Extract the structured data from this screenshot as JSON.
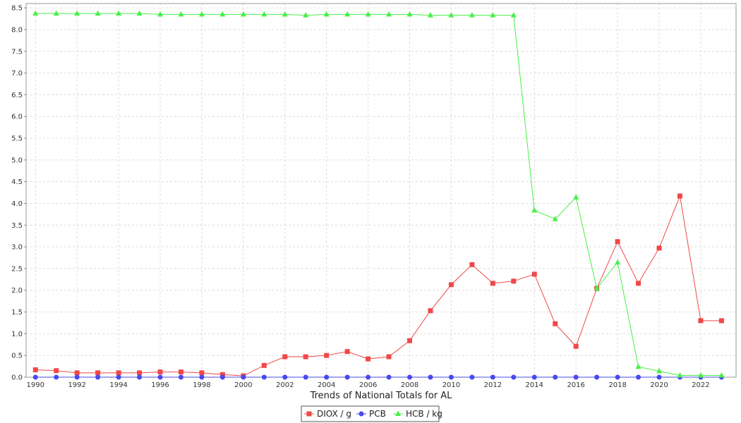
{
  "chart_data": {
    "type": "line",
    "title": "",
    "xlabel": "Trends of National Totals for AL",
    "ylabel": "",
    "x": [
      1990,
      1991,
      1992,
      1993,
      1994,
      1995,
      1996,
      1997,
      1998,
      1999,
      2000,
      2001,
      2002,
      2003,
      2004,
      2005,
      2006,
      2007,
      2008,
      2009,
      2010,
      2011,
      2012,
      2013,
      2014,
      2015,
      2016,
      2017,
      2018,
      2019,
      2020,
      2021,
      2022,
      2023
    ],
    "xlim": [
      1989.55,
      2023.7
    ],
    "ylim": [
      0,
      8.6
    ],
    "x_ticks": [
      1990,
      1992,
      1994,
      1996,
      1998,
      2000,
      2002,
      2004,
      2006,
      2008,
      2010,
      2012,
      2014,
      2016,
      2018,
      2020,
      2022
    ],
    "y_ticks": [
      "0.0",
      "0.5",
      "1.0",
      "1.5",
      "2.0",
      "2.5",
      "3.0",
      "3.5",
      "4.0",
      "4.5",
      "5.0",
      "5.5",
      "6.0",
      "6.5",
      "7.0",
      "7.5",
      "8.0",
      "8.5"
    ],
    "grid": true,
    "legend_position": "bottom-center",
    "series": [
      {
        "name": "DIOX / g",
        "color": "#f04848",
        "marker": "square",
        "values": [
          0.17,
          0.15,
          0.1,
          0.1,
          0.1,
          0.1,
          0.12,
          0.12,
          0.1,
          0.06,
          0.03,
          0.27,
          0.47,
          0.47,
          0.5,
          0.59,
          0.42,
          0.47,
          0.84,
          1.53,
          2.13,
          2.59,
          2.16,
          2.21,
          2.37,
          1.23,
          0.71,
          2.04,
          3.12,
          2.16,
          2.97,
          4.17,
          1.3,
          1.3
        ]
      },
      {
        "name": "PCB",
        "color": "#4848f0",
        "marker": "circle",
        "values": [
          0,
          0,
          0,
          0,
          0,
          0,
          0,
          0,
          0,
          0,
          0,
          0,
          0,
          0,
          0,
          0,
          0,
          0,
          0,
          0,
          0,
          0,
          0,
          0,
          0,
          0,
          0,
          0,
          0,
          0,
          0,
          0,
          0,
          0
        ]
      },
      {
        "name": "HCB / kg",
        "color": "#48f048",
        "marker": "triangle",
        "values": [
          8.37,
          8.37,
          8.37,
          8.37,
          8.37,
          8.37,
          8.35,
          8.35,
          8.35,
          8.35,
          8.35,
          8.35,
          8.35,
          8.33,
          8.35,
          8.35,
          8.35,
          8.35,
          8.35,
          8.33,
          8.33,
          8.33,
          8.33,
          8.33,
          3.84,
          3.64,
          4.14,
          2.04,
          2.64,
          0.24,
          0.14,
          0.04,
          0.04,
          0.04
        ]
      }
    ]
  }
}
